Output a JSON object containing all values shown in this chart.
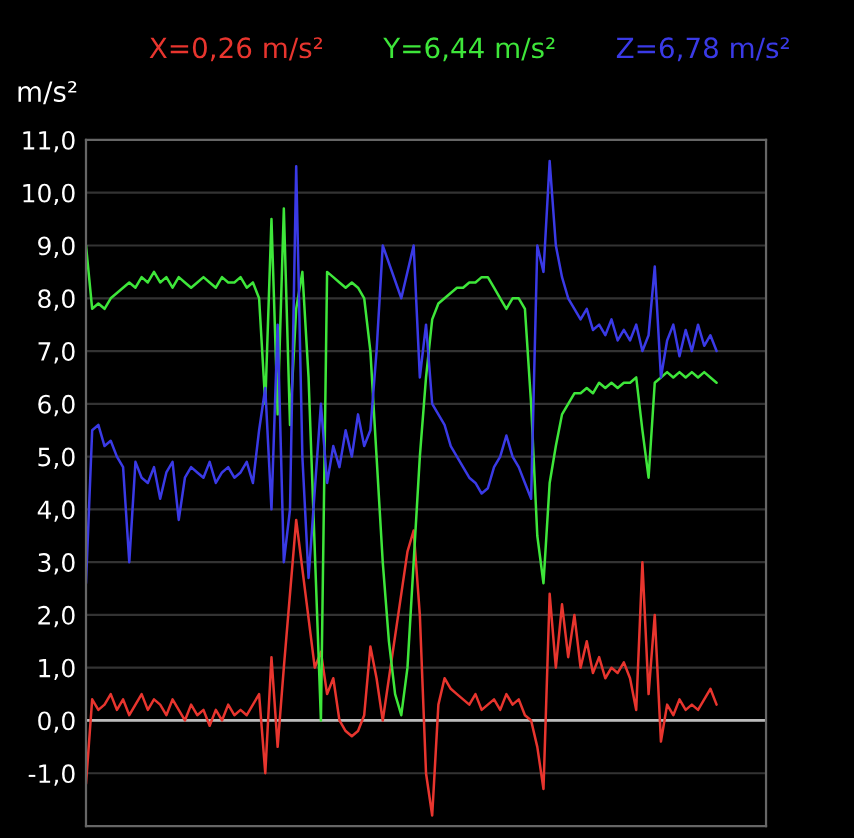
{
  "chart_data": {
    "type": "line",
    "ylabel": "m/s²",
    "categories": [
      null,
      null,
      null,
      null,
      null,
      null,
      null,
      null,
      null,
      null,
      null,
      null,
      null,
      null,
      null,
      null,
      null,
      null,
      null,
      null,
      null,
      null,
      null,
      null,
      null,
      null,
      null,
      null,
      null,
      null,
      null,
      null,
      null,
      null,
      null,
      null,
      null,
      null,
      null,
      null,
      null,
      null,
      null,
      null,
      null,
      null,
      null,
      null,
      null,
      null,
      null,
      null,
      null,
      null,
      null,
      null,
      null,
      null,
      null,
      null,
      null,
      null,
      null,
      null,
      null,
      null,
      null,
      null,
      null,
      null,
      null,
      null,
      null,
      null,
      null,
      null,
      null,
      null,
      null,
      null,
      null,
      null,
      null,
      null,
      null,
      null,
      null,
      null,
      null,
      null,
      null,
      null,
      null,
      null,
      null,
      null,
      null,
      null,
      null,
      null,
      null,
      null,
      null,
      null,
      null,
      null,
      null,
      null,
      null,
      null,
      null
    ],
    "series": [
      {
        "name": "X=0,26 m/s²",
        "color": "#e8352e",
        "values": [
          -1.2,
          0.4,
          0.2,
          0.3,
          0.5,
          0.2,
          0.4,
          0.1,
          0.3,
          0.5,
          0.2,
          0.4,
          0.3,
          0.1,
          0.4,
          0.2,
          0.0,
          0.3,
          0.1,
          0.2,
          -0.1,
          0.2,
          0.0,
          0.3,
          0.1,
          0.2,
          0.1,
          0.3,
          0.5,
          -1.0,
          1.2,
          -0.5,
          1.0,
          null,
          3.8,
          null,
          null,
          1.0,
          1.3,
          0.5,
          0.8,
          0.0,
          -0.2,
          -0.3,
          -0.2,
          0.1,
          1.4,
          0.8,
          0.0,
          null,
          null,
          null,
          3.2,
          3.6,
          2.0,
          -1.0,
          -1.8,
          0.3,
          0.8,
          0.6,
          0.5,
          0.4,
          0.3,
          0.5,
          0.2,
          0.3,
          0.4,
          0.2,
          0.5,
          0.3,
          0.4,
          0.1,
          0.0,
          -0.5,
          -1.3,
          2.4,
          1.0,
          2.2,
          1.2,
          2.0,
          1.0,
          1.5,
          0.9,
          1.2,
          0.8,
          1.0,
          0.9,
          1.1,
          0.8,
          0.2,
          3.0,
          0.5,
          2.0,
          -0.4,
          0.3,
          0.1,
          0.4,
          0.2,
          0.3,
          0.2,
          0.4,
          0.6,
          0.3,
          null,
          null,
          null,
          null,
          null,
          null,
          null,
          null
        ]
      },
      {
        "name": "Y=6,44 m/s²",
        "color": "#3ee63a",
        "values": [
          9.0,
          7.8,
          7.9,
          7.8,
          8.0,
          8.1,
          8.2,
          8.3,
          8.2,
          8.4,
          8.3,
          8.5,
          8.3,
          8.4,
          8.2,
          8.4,
          8.3,
          8.2,
          8.3,
          8.4,
          8.3,
          8.2,
          8.4,
          8.3,
          8.3,
          8.4,
          8.2,
          8.3,
          8.0,
          6.0,
          9.5,
          5.8,
          9.7,
          5.6,
          7.8,
          8.5,
          6.5,
          null,
          0.0,
          8.5,
          8.4,
          8.3,
          8.2,
          8.3,
          8.2,
          8.0,
          7.0,
          5.0,
          3.0,
          1.5,
          0.5,
          0.1,
          1.0,
          3.0,
          5.0,
          6.5,
          7.6,
          7.9,
          8.0,
          8.1,
          8.2,
          8.2,
          8.3,
          8.3,
          8.4,
          8.4,
          8.2,
          8.0,
          7.8,
          8.0,
          8.0,
          7.8,
          6.0,
          3.5,
          2.6,
          4.5,
          5.2,
          5.8,
          6.0,
          6.2,
          6.2,
          6.3,
          6.2,
          6.4,
          6.3,
          6.4,
          6.3,
          6.4,
          6.4,
          6.5,
          5.5,
          4.6,
          6.4,
          6.5,
          6.6,
          6.5,
          6.6,
          6.5,
          6.6,
          6.5,
          6.6,
          6.5,
          6.4,
          null,
          null,
          null,
          null,
          null,
          null,
          null,
          null
        ]
      },
      {
        "name": "Z=6,78 m/s²",
        "color": "#3a3ae6",
        "values": [
          2.6,
          5.5,
          5.6,
          5.2,
          5.3,
          5.0,
          4.8,
          3.0,
          4.9,
          4.6,
          4.5,
          4.8,
          4.2,
          4.7,
          4.9,
          3.8,
          4.6,
          4.8,
          4.7,
          4.6,
          4.9,
          4.5,
          4.7,
          4.8,
          4.6,
          4.7,
          4.9,
          4.5,
          5.5,
          6.3,
          4.0,
          7.5,
          3.0,
          4.0,
          10.5,
          5.0,
          2.7,
          null,
          6.0,
          4.5,
          5.2,
          4.8,
          5.5,
          5.0,
          5.8,
          5.2,
          5.5,
          7.0,
          9.0,
          null,
          null,
          8.0,
          null,
          9.0,
          6.5,
          7.5,
          6.0,
          5.8,
          5.6,
          5.2,
          5.0,
          4.8,
          4.6,
          4.5,
          4.3,
          4.4,
          4.8,
          5.0,
          5.4,
          5.0,
          4.8,
          4.5,
          4.2,
          9.0,
          8.5,
          10.6,
          9.0,
          8.4,
          8.0,
          7.8,
          7.6,
          7.8,
          7.4,
          7.5,
          7.3,
          7.6,
          7.2,
          7.4,
          7.2,
          7.5,
          7.0,
          7.3,
          8.6,
          6.5,
          7.2,
          7.5,
          6.9,
          7.4,
          7.0,
          7.5,
          7.1,
          7.3,
          7.0,
          null,
          null,
          null,
          null,
          null,
          null,
          null,
          null
        ]
      }
    ],
    "ylim": [
      -2,
      11
    ],
    "yticks": [
      {
        "value": -1,
        "label": "-1,0"
      },
      {
        "value": 0,
        "label": "0,0"
      },
      {
        "value": 1,
        "label": "1,0"
      },
      {
        "value": 2,
        "label": "2,0"
      },
      {
        "value": 3,
        "label": "3,0"
      },
      {
        "value": 4,
        "label": "4,0"
      },
      {
        "value": 5,
        "label": "5,0"
      },
      {
        "value": 6,
        "label": "6,0"
      },
      {
        "value": 7,
        "label": "7,0"
      },
      {
        "value": 8,
        "label": "8,0"
      },
      {
        "value": 9,
        "label": "9,0"
      },
      {
        "value": 10,
        "label": "10,0"
      },
      {
        "value": 11,
        "label": "11,0"
      }
    ],
    "tick_labels": "y",
    "grid": "y",
    "legend": "top",
    "ref_lines": [
      {
        "axis": "y",
        "value": 0,
        "color": "#bbbbbb"
      }
    ]
  }
}
